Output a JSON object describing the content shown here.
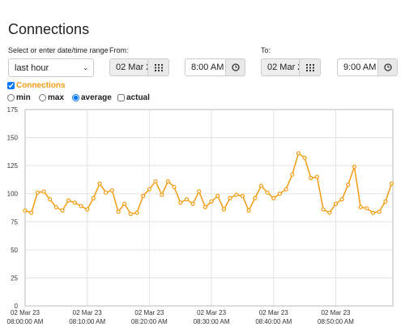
{
  "header": {
    "title": "Connections"
  },
  "range": {
    "label": "Select or enter date/time range",
    "selected": "last hour"
  },
  "from": {
    "label": "From:",
    "date": "02 Mar 23",
    "time": "8:00 AM"
  },
  "to": {
    "label": "To:",
    "date": "02 Mar 23",
    "time": "9:00 AM"
  },
  "toggles": {
    "connections": "Connections",
    "min": "min",
    "max": "max",
    "average": "average",
    "actual": "actual"
  },
  "chart_data": {
    "type": "line",
    "x": [
      "08:00",
      "08:01",
      "08:02",
      "08:03",
      "08:04",
      "08:05",
      "08:06",
      "08:07",
      "08:08",
      "08:09",
      "08:10",
      "08:11",
      "08:12",
      "08:13",
      "08:14",
      "08:15",
      "08:16",
      "08:17",
      "08:18",
      "08:19",
      "08:20",
      "08:21",
      "08:22",
      "08:23",
      "08:24",
      "08:25",
      "08:26",
      "08:27",
      "08:28",
      "08:29",
      "08:30",
      "08:31",
      "08:32",
      "08:33",
      "08:34",
      "08:35",
      "08:36",
      "08:37",
      "08:38",
      "08:39",
      "08:40",
      "08:41",
      "08:42",
      "08:43",
      "08:44",
      "08:45",
      "08:46",
      "08:47",
      "08:48",
      "08:49",
      "08:50",
      "08:51",
      "08:52",
      "08:53",
      "08:54",
      "08:55",
      "08:56",
      "08:57",
      "08:58",
      "08:59"
    ],
    "series": [
      {
        "name": "Connections",
        "color": "#f39c12",
        "values": [
          85,
          83,
          101,
          102,
          95,
          88,
          85,
          94,
          92,
          89,
          86,
          96,
          109,
          101,
          103,
          84,
          91,
          82,
          83,
          98,
          104,
          111,
          99,
          111,
          106,
          92,
          95,
          91,
          102,
          88,
          93,
          98,
          86,
          96,
          99,
          98,
          85,
          96,
          107,
          101,
          96,
          100,
          104,
          117,
          136,
          132,
          114,
          115,
          86,
          83,
          91,
          95,
          108,
          124,
          88,
          87,
          83,
          84,
          93,
          109
        ]
      }
    ],
    "xlim": [
      "08:00",
      "08:59"
    ],
    "xticks": [
      {
        "value": "08:00",
        "label": [
          "02 Mar 23",
          "08:00:00 AM"
        ]
      },
      {
        "value": "08:10",
        "label": [
          "02 Mar 23",
          "08:10:00 AM"
        ]
      },
      {
        "value": "08:20",
        "label": [
          "02 Mar 23",
          "08:20:00 AM"
        ]
      },
      {
        "value": "08:30",
        "label": [
          "02 Mar 23",
          "08:30:00 AM"
        ]
      },
      {
        "value": "08:40",
        "label": [
          "02 Mar 23",
          "08:40:00 AM"
        ]
      },
      {
        "value": "08:50",
        "label": [
          "02 Mar 23",
          "08:50:00 AM"
        ]
      }
    ],
    "ylim": [
      0,
      175
    ],
    "yticks": [
      0,
      25,
      50,
      75,
      100,
      125,
      150,
      175
    ],
    "grid": true
  }
}
